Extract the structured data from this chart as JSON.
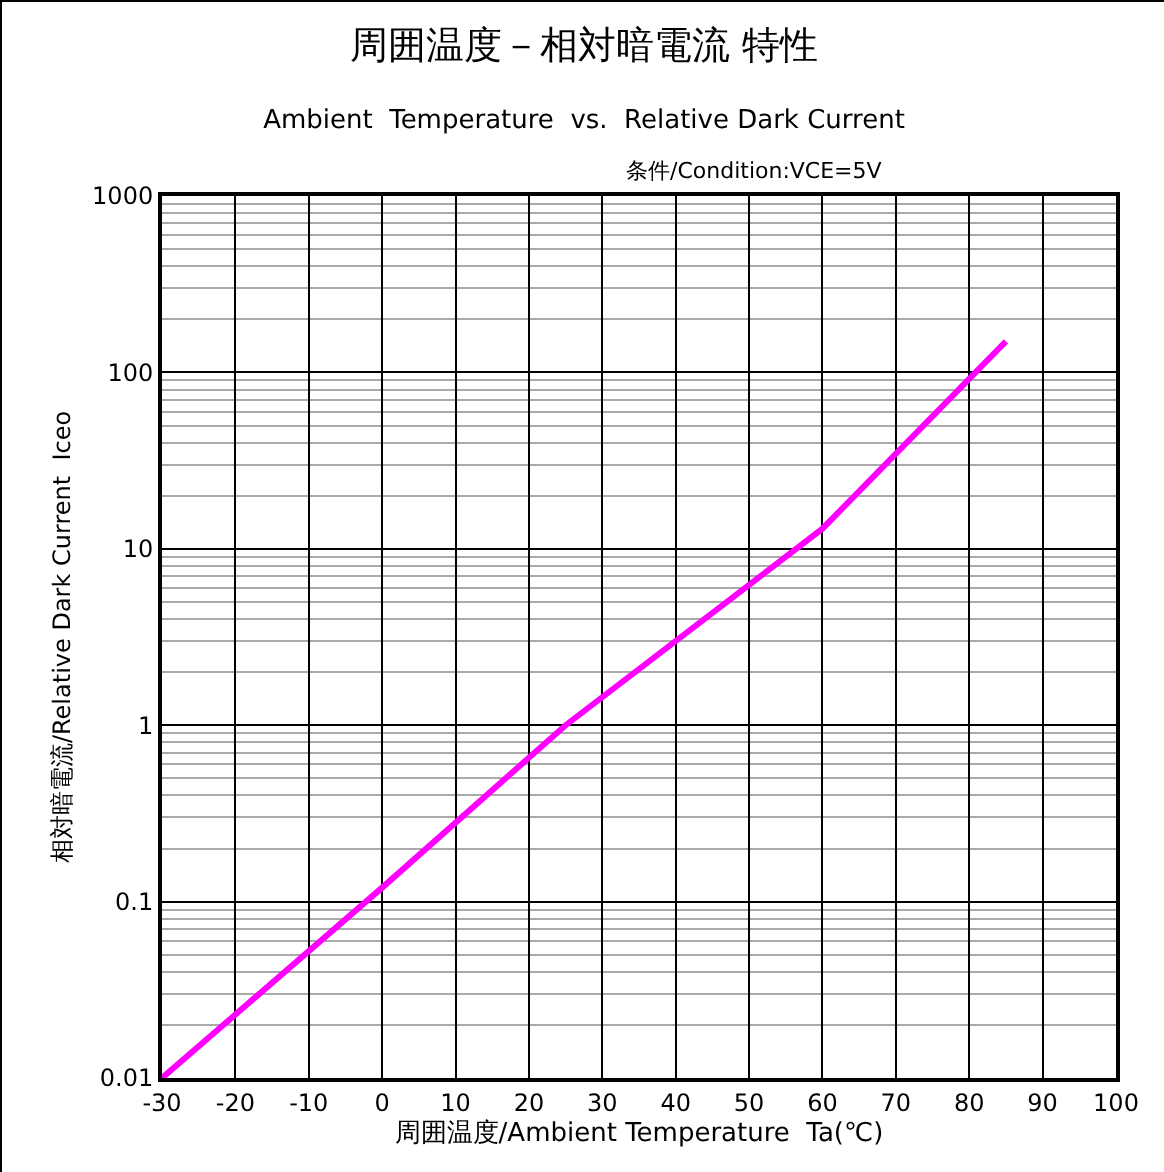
{
  "chart_data": {
    "type": "line",
    "title": "周囲温度－相対暗電流 特性",
    "subtitle": "Ambient  Temperature  vs.  Relative Dark Current",
    "annotations": [
      "条件/Condition:VCE=5V"
    ],
    "xlabel": "周囲温度/Ambient Temperature  Ta(℃)",
    "ylabel": "相対暗電流/Relative Dark Current  Iceo",
    "x": [
      -30,
      0,
      25,
      60,
      85
    ],
    "series": [
      {
        "color": "#ff00ff",
        "values": [
          0.01,
          0.12,
          1,
          13,
          150
        ]
      }
    ],
    "xlim": [
      -30,
      100
    ],
    "xticks": [
      -30,
      -20,
      -10,
      0,
      10,
      20,
      30,
      40,
      50,
      60,
      70,
      80,
      90,
      100
    ],
    "ylim": [
      0.01,
      1000
    ],
    "yticks": [
      0.01,
      0.1,
      1,
      10,
      100,
      1000
    ],
    "log": "y",
    "grid": true,
    "marker": "none",
    "line_style": "solid"
  }
}
